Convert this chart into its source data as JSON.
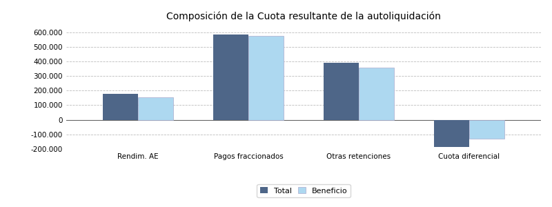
{
  "title": "Composición de la Cuota resultante de la autoliquidación",
  "categories": [
    "Rendim. AE",
    "Pagos fraccionados",
    "Otras retenciones",
    "Cuota diferencial"
  ],
  "total_values": [
    180000,
    585000,
    390000,
    -185000
  ],
  "beneficio_values": [
    155000,
    575000,
    355000,
    -130000
  ],
  "color_total": "#4E6688",
  "color_beneficio": "#ADD8F0",
  "ylim": [
    -200000,
    650000
  ],
  "yticks": [
    -200000,
    -100000,
    0,
    100000,
    200000,
    300000,
    400000,
    500000,
    600000
  ],
  "legend_labels": [
    "Total",
    "Beneficio"
  ],
  "bar_width": 0.32,
  "background_color": "#ffffff",
  "grid_color": "#bbbbbb",
  "title_fontsize": 10
}
